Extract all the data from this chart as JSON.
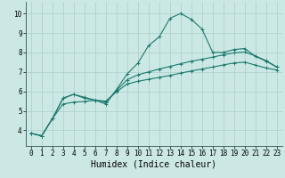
{
  "xlabel": "Humidex (Indice chaleur)",
  "bg_color": "#cce8e5",
  "grid_color": "#aacccc",
  "line_color": "#1a7a6e",
  "xlim": [
    -0.5,
    23.5
  ],
  "ylim": [
    3.2,
    10.6
  ],
  "xticks": [
    0,
    1,
    2,
    3,
    4,
    5,
    6,
    7,
    8,
    9,
    10,
    11,
    12,
    13,
    14,
    15,
    16,
    17,
    18,
    19,
    20,
    21,
    22,
    23
  ],
  "yticks": [
    4,
    5,
    6,
    7,
    8,
    9,
    10
  ],
  "line1_x": [
    0,
    1,
    2,
    3,
    4,
    5,
    6,
    7,
    8,
    9,
    10,
    11,
    12,
    13,
    14,
    15,
    16,
    17,
    18,
    19,
    20,
    21,
    22,
    23
  ],
  "line1_y": [
    3.85,
    3.72,
    4.6,
    5.65,
    5.85,
    5.7,
    5.55,
    5.35,
    6.1,
    6.9,
    7.45,
    8.35,
    8.8,
    9.75,
    10.0,
    9.7,
    9.2,
    8.0,
    8.0,
    8.15,
    8.2,
    7.8,
    7.55,
    7.25
  ],
  "line2_x": [
    0,
    1,
    2,
    3,
    4,
    5,
    6,
    7,
    8,
    9,
    10,
    11,
    12,
    13,
    14,
    15,
    16,
    17,
    18,
    19,
    20,
    21,
    22,
    23
  ],
  "line2_y": [
    3.85,
    3.72,
    4.6,
    5.65,
    5.85,
    5.65,
    5.55,
    5.45,
    6.05,
    6.6,
    6.85,
    7.0,
    7.15,
    7.28,
    7.42,
    7.55,
    7.65,
    7.76,
    7.88,
    7.98,
    8.02,
    7.82,
    7.58,
    7.25
  ],
  "line3_x": [
    0,
    1,
    2,
    3,
    4,
    5,
    6,
    7,
    8,
    9,
    10,
    11,
    12,
    13,
    14,
    15,
    16,
    17,
    18,
    19,
    20,
    21,
    22,
    23
  ],
  "line3_y": [
    3.85,
    3.72,
    4.6,
    5.35,
    5.45,
    5.48,
    5.55,
    5.5,
    5.98,
    6.38,
    6.52,
    6.62,
    6.72,
    6.82,
    6.94,
    7.05,
    7.15,
    7.25,
    7.36,
    7.46,
    7.5,
    7.35,
    7.2,
    7.1
  ],
  "marker": "+",
  "markersize": 3,
  "markeredgewidth": 0.7,
  "linewidth": 0.8,
  "xlabel_fontsize": 7,
  "tick_fontsize": 5.5
}
